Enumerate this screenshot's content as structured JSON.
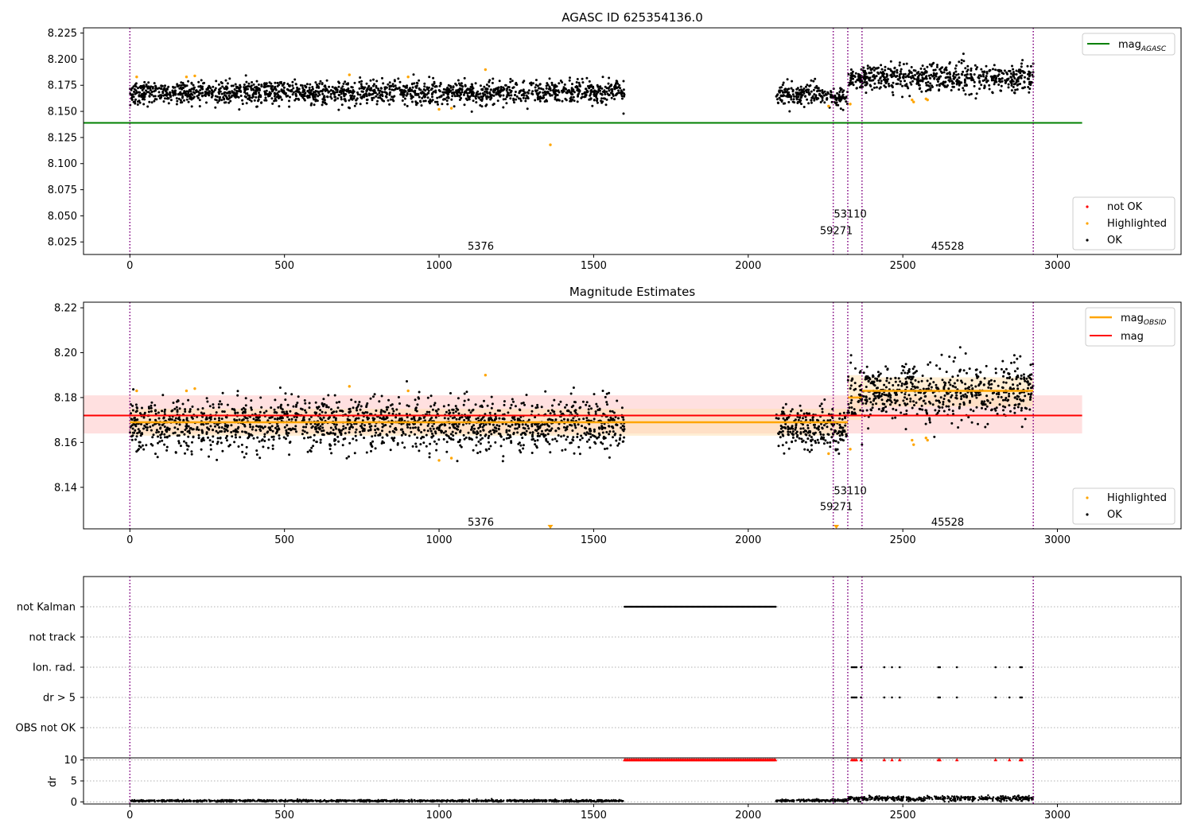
{
  "figure": {
    "panel1_title": "AGASC ID 625354136.0",
    "panel2_title": "Magnitude Estimates"
  },
  "colors": {
    "ok": "#000000",
    "highlighted": "#ffa500",
    "not_ok": "#ff0000",
    "mag_agasc": "#008000",
    "mag": "#ff0000",
    "mag_obsid": "#ffa500",
    "obsid_boundary": "#800080",
    "mag_band": "#ffcccc",
    "obsid_band": "#ffe0b0"
  },
  "chart_data": [
    {
      "type": "scatter",
      "title": "AGASC ID 625354136.0",
      "xlim": [
        -150,
        3400
      ],
      "ylim": [
        8.013,
        8.23
      ],
      "xticks": [
        0,
        500,
        1000,
        1500,
        2000,
        2500,
        3000
      ],
      "yticks": [
        8.025,
        8.05,
        8.075,
        8.1,
        8.125,
        8.15,
        8.175,
        8.2,
        8.225
      ],
      "ytick_labels": [
        "8.025",
        "8.050",
        "8.075",
        "8.100",
        "8.125",
        "8.150",
        "8.175",
        "8.200",
        "8.225"
      ],
      "grid": false,
      "mag_agasc": 8.139,
      "mag_agasc_x_range": [
        -150,
        3080
      ],
      "obsid_boundaries": [
        0,
        2275,
        2322,
        2368,
        2922
      ],
      "obsid_labels": [
        {
          "text": "5376",
          "x": 1135,
          "y": 8.021
        },
        {
          "text": "59271",
          "x": 2285,
          "y": 8.036
        },
        {
          "text": "53110",
          "x": 2330,
          "y": 8.052
        },
        {
          "text": "45528",
          "x": 2645,
          "y": 8.021
        }
      ],
      "ok_segments": [
        {
          "x": [
            0,
            1600
          ],
          "mean": 8.168,
          "sd": 0.0055
        },
        {
          "x": [
            2090,
            2275
          ],
          "mean": 8.167,
          "sd": 0.005
        },
        {
          "x": [
            2275,
            2322
          ],
          "mean": 8.163,
          "sd": 0.005
        },
        {
          "x": [
            2322,
            2368
          ],
          "mean": 8.181,
          "sd": 0.006
        },
        {
          "x": [
            2368,
            2922
          ],
          "mean": 8.182,
          "sd": 0.0065
        }
      ],
      "highlighted_points": [
        [
          22,
          8.183
        ],
        [
          183,
          8.183
        ],
        [
          210,
          8.184
        ],
        [
          710,
          8.185
        ],
        [
          900,
          8.183
        ],
        [
          1000,
          8.152
        ],
        [
          1040,
          8.153
        ],
        [
          1150,
          8.19
        ],
        [
          1360,
          8.118
        ],
        [
          2260,
          8.155
        ],
        [
          2330,
          8.157
        ],
        [
          2530,
          8.161
        ],
        [
          2535,
          8.159
        ],
        [
          2575,
          8.162
        ],
        [
          2580,
          8.161
        ]
      ],
      "legend_top": [
        "mag",
        "AGASC"
      ],
      "legend_bottom": [
        "not OK",
        "Highlighted",
        "OK"
      ]
    },
    {
      "type": "scatter",
      "title": "Magnitude Estimates",
      "xlim": [
        -150,
        3400
      ],
      "ylim": [
        8.1215,
        8.2225
      ],
      "xticks": [
        0,
        500,
        1000,
        1500,
        2000,
        2500,
        3000
      ],
      "yticks": [
        8.14,
        8.16,
        8.18,
        8.2,
        8.22
      ],
      "ytick_labels": [
        "8.14",
        "8.16",
        "8.18",
        "8.20",
        "8.22"
      ],
      "grid": false,
      "mag": 8.172,
      "mag_band": [
        8.164,
        8.181
      ],
      "mag_x_range": [
        -150,
        3080
      ],
      "mag_obsid_segments": [
        {
          "x": [
            0,
            2322
          ],
          "value": 8.169,
          "band": [
            8.163,
            8.175
          ]
        },
        {
          "x": [
            2322,
            2368
          ],
          "value": 8.18,
          "band": [
            8.17,
            8.19
          ]
        },
        {
          "x": [
            2368,
            2922
          ],
          "value": 8.183,
          "band": [
            8.176,
            8.189
          ]
        }
      ],
      "obsid_boundaries": [
        0,
        2275,
        2322,
        2368,
        2922
      ],
      "obsid_labels": [
        {
          "text": "5376",
          "x": 1135,
          "y": 8.1245
        },
        {
          "text": "59271",
          "x": 2285,
          "y": 8.1315
        },
        {
          "text": "53110",
          "x": 2330,
          "y": 8.1385
        },
        {
          "text": "45528",
          "x": 2645,
          "y": 8.1245
        }
      ],
      "ok_segments": [
        {
          "x": [
            0,
            1600
          ],
          "mean": 8.168,
          "sd": 0.0055
        },
        {
          "x": [
            2090,
            2275
          ],
          "mean": 8.167,
          "sd": 0.005
        },
        {
          "x": [
            2275,
            2322
          ],
          "mean": 8.163,
          "sd": 0.005
        },
        {
          "x": [
            2322,
            2368
          ],
          "mean": 8.181,
          "sd": 0.006
        },
        {
          "x": [
            2368,
            2922
          ],
          "mean": 8.182,
          "sd": 0.0065
        }
      ],
      "highlighted_points": [
        [
          22,
          8.183
        ],
        [
          183,
          8.183
        ],
        [
          210,
          8.184
        ],
        [
          710,
          8.185
        ],
        [
          900,
          8.183
        ],
        [
          1000,
          8.152
        ],
        [
          1040,
          8.153
        ],
        [
          1150,
          8.19
        ],
        [
          2260,
          8.155
        ],
        [
          2330,
          8.157
        ],
        [
          2530,
          8.161
        ],
        [
          2535,
          8.159
        ],
        [
          2575,
          8.162
        ],
        [
          2580,
          8.161
        ]
      ],
      "clipped_markers_x": [
        1360,
        2285
      ],
      "legend_top": [
        [
          "mag",
          "OBSID"
        ],
        [
          "mag",
          ""
        ]
      ],
      "legend_bottom": [
        "Highlighted",
        "OK"
      ]
    },
    {
      "type": "scatter",
      "xlim": [
        -150,
        3400
      ],
      "xticks": [
        0,
        500,
        1000,
        1500,
        2000,
        2500,
        3000
      ],
      "categories": [
        "not Kalman",
        "not track",
        "Ion. rad.",
        "dr > 5",
        "OBS not OK"
      ],
      "grid": "horizontal dotted",
      "obsid_boundaries": [
        0,
        2275,
        2322,
        2368,
        2922
      ],
      "flags": {
        "not Kalman": {
          "x_range": [
            1600,
            2090
          ]
        },
        "not track": {
          "x": []
        },
        "Ion. rad.": {
          "x": [
            2335,
            2340,
            2345,
            2350,
            2365,
            2440,
            2465,
            2490,
            2615,
            2620,
            2675,
            2800,
            2845,
            2880,
            2885
          ]
        },
        "dr > 5": {
          "x": [
            2335,
            2340,
            2345,
            2350,
            2365,
            2440,
            2465,
            2490,
            2615,
            2620,
            2675,
            2800,
            2845,
            2880,
            2885
          ]
        },
        "OBS not OK": {
          "x": []
        }
      }
    },
    {
      "type": "scatter",
      "xlim": [
        -150,
        3400
      ],
      "ylim": [
        -0.5,
        10.5
      ],
      "ylabel": "dr",
      "xticks": [
        0,
        500,
        1000,
        1500,
        2000,
        2500,
        3000
      ],
      "yticks": [
        0,
        5,
        10
      ],
      "ytick_labels": [
        "0",
        "5",
        "10"
      ],
      "grid": "horizontal dotted",
      "dr_segments": [
        {
          "x": [
            0,
            1600
          ],
          "mean": 0.25,
          "sd": 0.12
        },
        {
          "x": [
            2090,
            2322
          ],
          "mean": 0.3,
          "sd": 0.15
        },
        {
          "x": [
            2322,
            2922
          ],
          "mean": 0.8,
          "sd": 0.3
        }
      ],
      "clipped_red_x_range": [
        1600,
        2090
      ],
      "clipped_red_points": [
        2335,
        2340,
        2345,
        2350,
        2365,
        2440,
        2465,
        2490,
        2615,
        2620,
        2675,
        2800,
        2845,
        2880,
        2885
      ],
      "obsid_boundaries": [
        0,
        2275,
        2322,
        2368,
        2922
      ]
    }
  ]
}
